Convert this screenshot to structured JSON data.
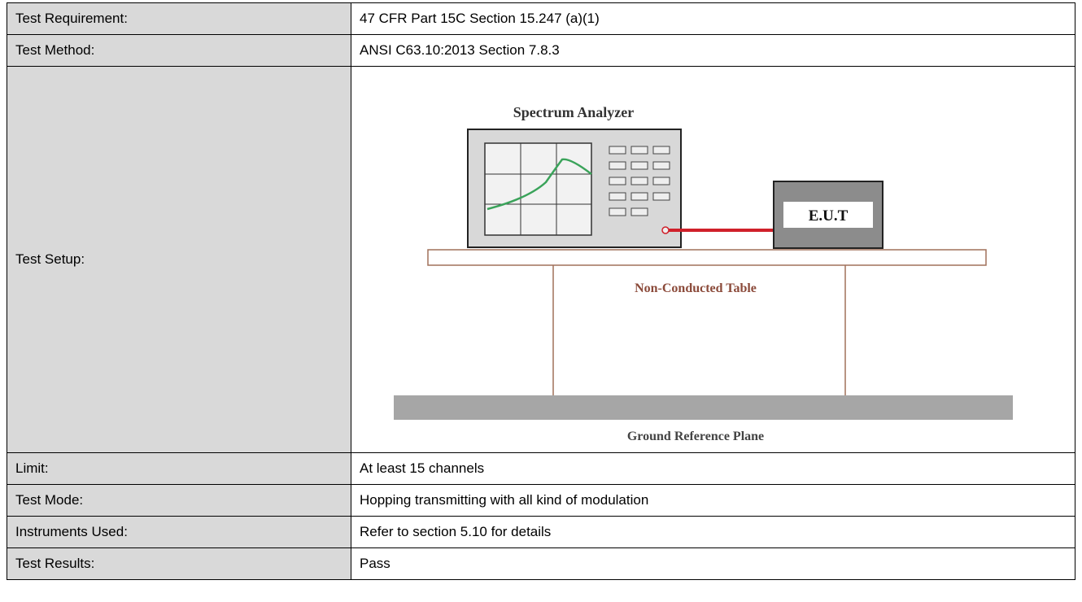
{
  "table": {
    "rows": [
      [
        "Test Requirement:",
        "47 CFR Part 15C Section 15.247 (a)(1)"
      ],
      [
        "Test Method:",
        "ANSI C63.10:2013 Section 7.8.3"
      ],
      [
        "Test Setup:",
        null
      ],
      [
        "Limit:",
        "At least 15 channels"
      ],
      [
        "Test Mode:",
        "Hopping transmitting with all kind of modulation"
      ],
      [
        "Instruments Used:",
        "Refer to section 5.10 for details"
      ],
      [
        "Test Results:",
        "Pass"
      ]
    ]
  },
  "diagram": {
    "analyzer_label": "Spectrum Analyzer",
    "eut_label": "E.U.T",
    "table_label": "Non-Conducted Table",
    "ground_label": "Ground Reference Plane"
  }
}
